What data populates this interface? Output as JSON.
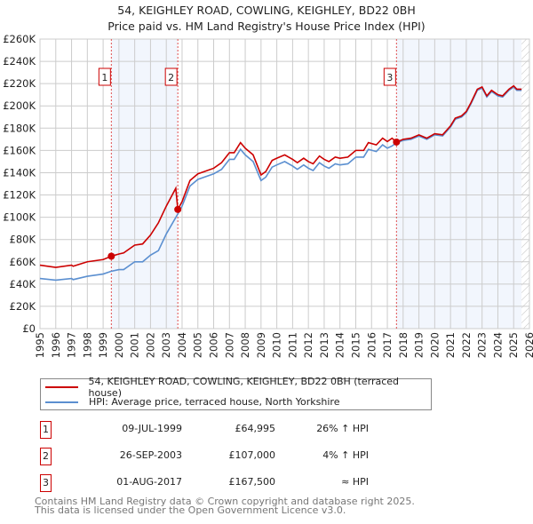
{
  "title": "54, KEIGHLEY ROAD, COWLING, KEIGHLEY, BD22 0BH",
  "subtitle": "Price paid vs. HM Land Registry's House Price Index (HPI)",
  "chart_data": {
    "type": "line",
    "ylim": [
      0,
      260000
    ],
    "xlim": [
      1995,
      2026
    ],
    "yticks": [
      {
        "v": 0,
        "l": "£0"
      },
      {
        "v": 20000,
        "l": "£20K"
      },
      {
        "v": 40000,
        "l": "£40K"
      },
      {
        "v": 60000,
        "l": "£60K"
      },
      {
        "v": 80000,
        "l": "£80K"
      },
      {
        "v": 100000,
        "l": "£100K"
      },
      {
        "v": 120000,
        "l": "£120K"
      },
      {
        "v": 140000,
        "l": "£140K"
      },
      {
        "v": 160000,
        "l": "£160K"
      },
      {
        "v": 180000,
        "l": "£180K"
      },
      {
        "v": 200000,
        "l": "£200K"
      },
      {
        "v": 220000,
        "l": "£220K"
      },
      {
        "v": 240000,
        "l": "£240K"
      },
      {
        "v": 260000,
        "l": "£260K"
      }
    ],
    "xticks": [
      "1995",
      "1996",
      "1997",
      "1998",
      "1999",
      "2000",
      "2001",
      "2002",
      "2003",
      "2004",
      "2005",
      "2006",
      "2007",
      "2008",
      "2009",
      "2010",
      "2011",
      "2012",
      "2013",
      "2014",
      "2015",
      "2016",
      "2017",
      "2018",
      "2019",
      "2020",
      "2021",
      "2022",
      "2023",
      "2024",
      "2025",
      "2026"
    ],
    "series": [
      {
        "name": "54, KEIGHLEY ROAD, COWLING, KEIGHLEY, BD22 0BH (terraced house)",
        "color": "#cc0000",
        "x": [
          1995,
          1996,
          1997,
          1997.1,
          1998,
          1999,
          1999.52,
          2000,
          2000.3,
          2001,
          2001.5,
          2002,
          2002.5,
          2003,
          2003.6,
          2003.73,
          2004,
          2004.5,
          2005,
          2006,
          2006.5,
          2007,
          2007.3,
          2007.7,
          2008,
          2008.5,
          2009,
          2009.3,
          2009.7,
          2010,
          2010.5,
          2011,
          2011.3,
          2011.7,
          2012,
          2012.3,
          2012.7,
          2013,
          2013.3,
          2013.7,
          2014,
          2014.5,
          2015,
          2015.5,
          2015.8,
          2016.3,
          2016.7,
          2017,
          2017.3,
          2017.58,
          2018,
          2018.5,
          2019,
          2019.5,
          2020,
          2020.5,
          2021,
          2021.3,
          2021.7,
          2022,
          2022.3,
          2022.7,
          2023,
          2023.3,
          2023.6,
          2024,
          2024.3,
          2024.7,
          2025,
          2025.2,
          2025.5
        ],
        "y": [
          57000,
          55000,
          57000,
          56000,
          60000,
          62000,
          64995,
          67000,
          68000,
          75000,
          76000,
          84000,
          95000,
          110000,
          126000,
          107000,
          114000,
          133000,
          139000,
          144000,
          149000,
          158000,
          158000,
          167000,
          162000,
          156000,
          138000,
          141000,
          151000,
          153000,
          156000,
          152000,
          149000,
          153000,
          150000,
          148000,
          155000,
          152000,
          150000,
          154000,
          153000,
          154000,
          160000,
          160000,
          167000,
          165000,
          171000,
          168000,
          171000,
          167500,
          170000,
          171000,
          174000,
          171000,
          175000,
          174000,
          182000,
          189000,
          191000,
          195000,
          203000,
          215000,
          217000,
          209000,
          214000,
          210000,
          209000,
          215000,
          218000,
          215000,
          215000
        ]
      },
      {
        "name": "HPI: Average price, terraced house, North Yorkshire",
        "color": "#5b8fd0",
        "x": [
          1995,
          1996,
          1997,
          1997.1,
          1998,
          1999,
          1999.52,
          2000,
          2000.3,
          2001,
          2001.5,
          2002,
          2002.5,
          2003,
          2003.73,
          2004,
          2004.5,
          2005,
          2006,
          2006.5,
          2007,
          2007.3,
          2007.7,
          2008,
          2008.5,
          2009,
          2009.3,
          2009.7,
          2010,
          2010.5,
          2011,
          2011.3,
          2011.7,
          2012,
          2012.3,
          2012.7,
          2013,
          2013.3,
          2013.7,
          2014,
          2014.5,
          2015,
          2015.5,
          2015.8,
          2016.3,
          2016.7,
          2017,
          2017.3,
          2017.58,
          2018,
          2018.5,
          2019,
          2019.5,
          2020,
          2020.5,
          2021,
          2021.3,
          2021.7,
          2022,
          2022.3,
          2022.7,
          2023,
          2023.3,
          2023.6,
          2024,
          2024.3,
          2024.7,
          2025,
          2025.2,
          2025.5
        ],
        "y": [
          45000,
          43500,
          45000,
          44000,
          47000,
          49000,
          51500,
          53000,
          53000,
          60000,
          60000,
          66000,
          70000,
          85000,
          103000,
          110000,
          128000,
          134000,
          139000,
          143000,
          152000,
          152000,
          161000,
          156000,
          150000,
          133000,
          136000,
          145000,
          147000,
          150000,
          146000,
          143000,
          147000,
          144000,
          142000,
          149000,
          146000,
          144000,
          148000,
          147000,
          148000,
          154000,
          154000,
          161000,
          159000,
          165000,
          162000,
          164000,
          167000,
          169000,
          170000,
          173000,
          170000,
          174000,
          173000,
          181000,
          188000,
          190000,
          194000,
          202000,
          214000,
          216000,
          208000,
          213000,
          209000,
          208000,
          214000,
          217000,
          214000,
          214000
        ]
      }
    ],
    "sales": [
      {
        "n": "1",
        "x": 1999.52,
        "y": 64995
      },
      {
        "n": "2",
        "x": 2003.73,
        "y": 107000
      },
      {
        "n": "3",
        "x": 2017.58,
        "y": 167500
      }
    ],
    "shaded": [
      [
        1999.52,
        2003.73
      ],
      [
        2017.58,
        2025.5
      ]
    ],
    "hatch_from": 2025.5
  },
  "legend": [
    "54, KEIGHLEY ROAD, COWLING, KEIGHLEY, BD22 0BH (terraced house)",
    "HPI: Average price, terraced house, North Yorkshire"
  ],
  "transactions": [
    {
      "n": "1",
      "date": "09-JUL-1999",
      "price": "£64,995",
      "hpi": "26% ↑ HPI"
    },
    {
      "n": "2",
      "date": "26-SEP-2003",
      "price": "£107,000",
      "hpi": "4% ↑ HPI"
    },
    {
      "n": "3",
      "date": "01-AUG-2017",
      "price": "£167,500",
      "hpi": "≈ HPI"
    }
  ],
  "footer": [
    "Contains HM Land Registry data © Crown copyright and database right 2025.",
    "This data is licensed under the Open Government Licence v3.0."
  ]
}
